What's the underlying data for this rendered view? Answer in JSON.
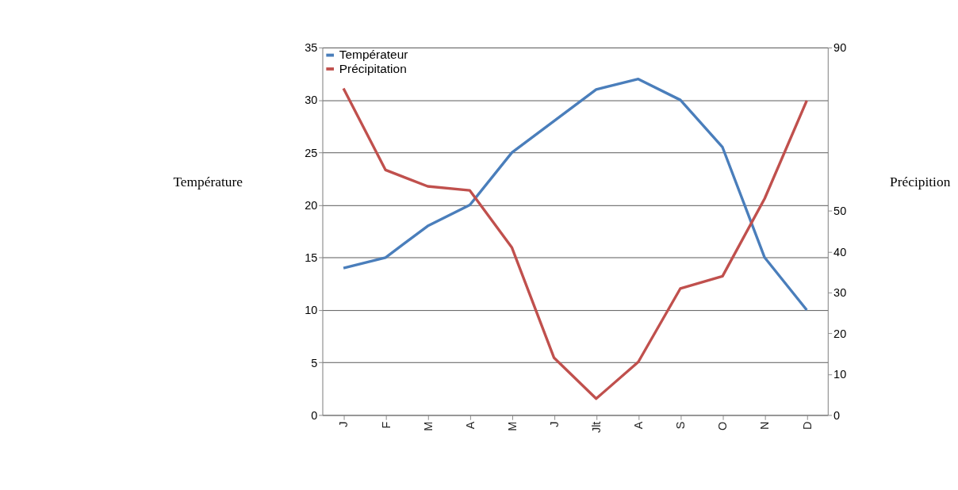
{
  "chart_data": {
    "type": "line",
    "ylabel": "Température",
    "y2label": "Précipition",
    "categories": [
      "J",
      "F",
      "M",
      "A",
      "M",
      "J",
      "Jlt",
      "A",
      "S",
      "O",
      "N",
      "D"
    ],
    "ylim": [
      0,
      35
    ],
    "yticks": [
      0,
      5,
      10,
      15,
      20,
      25,
      30,
      35
    ],
    "y2lim": [
      0,
      90
    ],
    "y2ticks": [
      0,
      10,
      20,
      30,
      40,
      50,
      90
    ],
    "series": [
      {
        "name": "Températeur",
        "color": "#4a7ebb",
        "values": [
          14,
          15,
          18,
          20,
          25,
          28,
          31,
          32,
          30,
          25.5,
          15,
          10
        ]
      },
      {
        "name": "Précipitation",
        "color": "#c0504d",
        "axis": "y2",
        "values": [
          80,
          60,
          56,
          55,
          41,
          14,
          4,
          13,
          31,
          34,
          53,
          77
        ]
      }
    ],
    "grid": "y",
    "legend": "top left",
    "line_style": "solid",
    "marker": "none"
  }
}
